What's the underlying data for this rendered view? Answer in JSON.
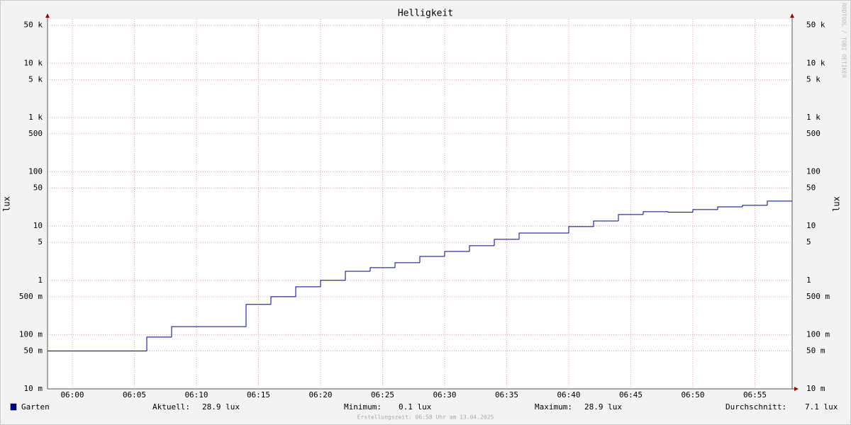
{
  "chart_data": {
    "type": "step",
    "title": "Helligkeit",
    "ylabel": "lux",
    "watermark": "RRDTOOL / TOBI OETIKER",
    "log_y": true,
    "grid": true,
    "xlim": [
      "05:58",
      "06:58"
    ],
    "xticks": [
      "06:00",
      "06:05",
      "06:10",
      "06:15",
      "06:20",
      "06:25",
      "06:30",
      "06:35",
      "06:40",
      "06:45",
      "06:50",
      "06:55"
    ],
    "ylim": [
      0.01,
      65000
    ],
    "yticks": [
      {
        "value": 0.01,
        "label": "10 m"
      },
      {
        "value": 0.05,
        "label": "50 m"
      },
      {
        "value": 0.1,
        "label": "100 m"
      },
      {
        "value": 0.5,
        "label": "500 m"
      },
      1,
      5,
      10,
      50,
      100,
      500,
      {
        "value": 1000,
        "label": "1 k"
      },
      {
        "value": 5000,
        "label": "5 k"
      },
      {
        "value": 10000,
        "label": "10 k"
      },
      {
        "value": 50000,
        "label": "50 k"
      }
    ],
    "x": [
      "05:58",
      "06:06",
      "06:08",
      "06:14",
      "06:16",
      "06:18",
      "06:20",
      "06:22",
      "06:24",
      "06:26",
      "06:28",
      "06:30",
      "06:32",
      "06:34",
      "06:36",
      "06:40",
      "06:42",
      "06:44",
      "06:46",
      "06:48",
      "06:50",
      "06:52",
      "06:54",
      "06:56"
    ],
    "series": [
      {
        "name": "Garten",
        "color": "#00008b",
        "values": [
          0.05,
          0.09,
          0.14,
          0.36,
          0.5,
          0.76,
          1.0,
          1.47,
          1.71,
          2.11,
          2.76,
          3.41,
          4.34,
          5.69,
          7.45,
          9.77,
          12.4,
          16.3,
          18.4,
          18,
          20.1,
          22.6,
          24.1,
          28.9
        ]
      }
    ],
    "stats": [
      {
        "label": "Aktuell:",
        "value": "28.9 lux"
      },
      {
        "label": "Minimum:",
        "value": "0.1 lux"
      },
      {
        "label": "Maximum:",
        "value": "28.9 lux"
      },
      {
        "label": "Durchschnitt:",
        "value": "7.1 lux"
      }
    ],
    "footer": "Erstellungszeit: 06:58 Uhr am 13.04.2025"
  }
}
